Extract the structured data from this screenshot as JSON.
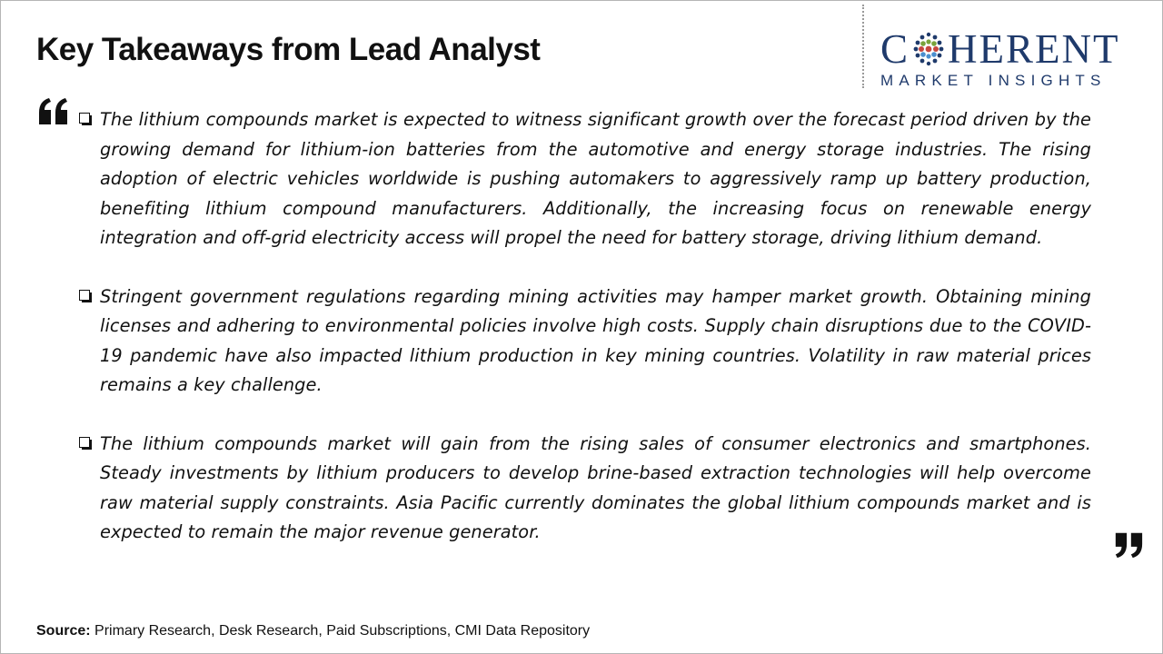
{
  "slide": {
    "title": "Key Takeaways from Lead Analyst"
  },
  "logo": {
    "word_part1": "C",
    "word_part2": "HERENT",
    "tagline": "MARKET INSIGHTS",
    "brand_color": "#1f3a6b"
  },
  "icons": {
    "open_quote": "open-quote-icon",
    "close_quote": "close-quote-icon",
    "bullet": "checkbox-bullet-icon"
  },
  "takeaways": [
    {
      "text": "The lithium compounds market is expected to witness significant growth over the forecast period driven by the growing demand for lithium-ion batteries from the automotive and energy storage industries. The rising adoption of electric vehicles worldwide is pushing automakers to aggressively ramp up battery production, benefiting lithium compound manufacturers. Additionally, the increasing focus on renewable energy integration and off-grid electricity access will propel the need for battery storage, driving lithium demand."
    },
    {
      "text": "Stringent government regulations regarding mining activities may hamper market growth. Obtaining mining licenses and adhering to environmental policies involve high costs. Supply chain disruptions due to the COVID-19 pandemic have also impacted lithium production in key mining countries. Volatility in raw material prices remains a key challenge."
    },
    {
      "text": "The lithium compounds market will gain from the rising sales of consumer electronics and smartphones. Steady investments by lithium producers to develop brine-based extraction technologies will help overcome raw material supply constraints. Asia Pacific currently dominates the global lithium compounds market and is expected to remain the major revenue generator."
    }
  ],
  "source": {
    "label": "Source:",
    "text": "Primary Research, Desk Research, Paid Subscriptions, CMI Data Repository"
  }
}
